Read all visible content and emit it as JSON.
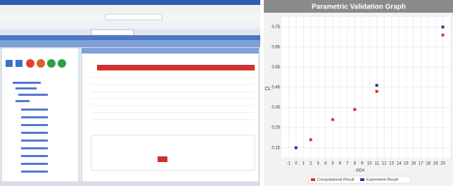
{
  "chart_data": {
    "type": "scatter",
    "title": "Parametric Validation Graph",
    "xlabel": "AOA",
    "ylabel": "CL",
    "series": [
      {
        "name": "Computational Result",
        "color": "#e03030",
        "x": [
          2,
          5,
          8,
          11,
          20
        ],
        "values": [
          0.19,
          0.29,
          0.34,
          0.43,
          0.71
        ]
      },
      {
        "name": "Experiment Result",
        "color": "#2a3a9a",
        "x": [
          0,
          11,
          20
        ],
        "values": [
          0.15,
          0.46,
          0.75
        ]
      }
    ],
    "xlim": [
      -2,
      21
    ],
    "xticks": [
      -1,
      0,
      1,
      2,
      3,
      4,
      5,
      6,
      7,
      8,
      9,
      10,
      11,
      12,
      13,
      14,
      15,
      16,
      17,
      18,
      19,
      20
    ],
    "ylim": [
      0.1,
      0.8
    ],
    "yticks": [
      0.15,
      0.25,
      0.35,
      0.45,
      0.55,
      0.65,
      0.75
    ],
    "grid": true,
    "legend": "bottom"
  }
}
